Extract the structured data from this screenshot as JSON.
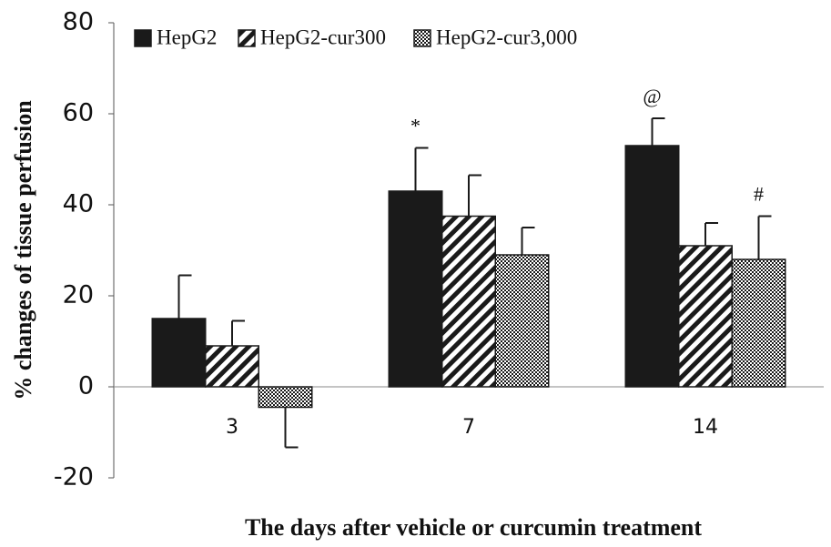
{
  "chart_data": {
    "type": "bar",
    "y_label": "% changes of tissue perfusion",
    "x_label": "The days after vehicle or curcumin treatment",
    "categories": [
      "3",
      "7",
      "14"
    ],
    "series": [
      {
        "name": "HepG2",
        "color": "#1a1a1a",
        "pattern": "solid",
        "values": [
          15,
          43,
          53
        ],
        "errors": [
          9.5,
          9.5,
          6
        ]
      },
      {
        "name": "HepG2-cur300",
        "color": "#1a1a1a",
        "pattern": "hatch",
        "values": [
          9,
          37.5,
          31
        ],
        "errors": [
          5.5,
          9,
          5
        ]
      },
      {
        "name": "HepG2-cur3,000",
        "color": "#1a1a1a",
        "pattern": "checker",
        "values": [
          -4.5,
          29,
          28
        ],
        "errors": [
          8.8,
          6,
          9.5
        ]
      }
    ],
    "annotations": [
      {
        "text": "*",
        "category": "7",
        "series": "HepG2"
      },
      {
        "text": "@",
        "category": "14",
        "series": "HepG2"
      },
      {
        "text": "#",
        "category": "14",
        "series": "HepG2-cur3,000"
      }
    ],
    "ylim": [
      -20,
      80
    ],
    "yticks": [
      -20,
      0,
      20,
      40,
      60,
      80
    ],
    "legend": "top-left"
  }
}
